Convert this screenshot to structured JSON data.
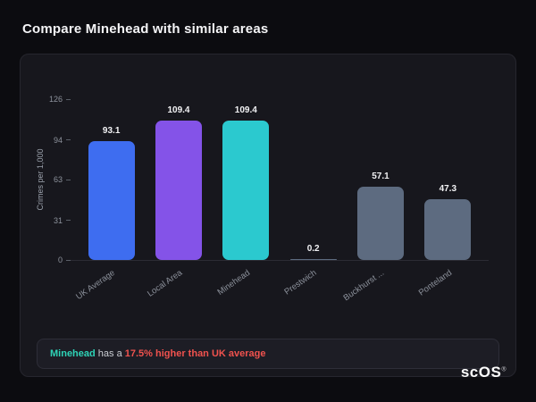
{
  "header": {
    "title": "Compare Minehead with similar areas"
  },
  "chart_data": {
    "type": "bar",
    "title": "",
    "categories": [
      "UK Average",
      "Local Area",
      "Minehead",
      "Prestwich",
      "Buckhurst ...",
      "Ponteland"
    ],
    "values": [
      93.1,
      109.4,
      109.4,
      0.2,
      57.1,
      47.3
    ],
    "bar_colors": [
      "#3e6df0",
      "#8453e8",
      "#2bc9cf",
      "#5d6b80",
      "#5d6b80",
      "#5d6b80"
    ],
    "xlabel": "",
    "ylabel": "Crimes per 1,000",
    "yticks": [
      0,
      31,
      63,
      94,
      126
    ],
    "ylim": [
      0,
      126
    ],
    "grid": false,
    "legend": false
  },
  "note": {
    "area": "Minehead",
    "middle": " has a ",
    "stat": "17.5% higher than UK average"
  },
  "branding": {
    "logo": "scOS",
    "registered": "®"
  },
  "colors": {
    "accent_teal": "#2ed3b7",
    "accent_red": "#f0524e",
    "bar_blue": "#3e6df0",
    "bar_purple": "#8453e8",
    "bar_gray": "#5d6b80",
    "background": "#0c0c10",
    "card": "#17171d"
  }
}
